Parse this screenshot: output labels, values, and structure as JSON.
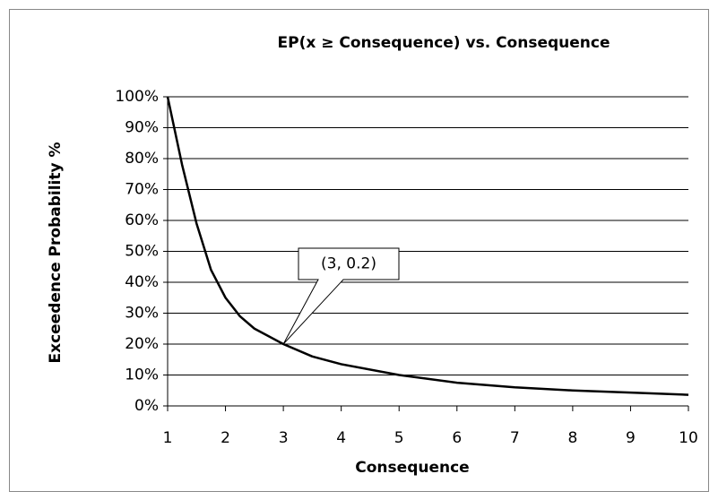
{
  "chart_data": {
    "type": "line",
    "title": "EP(x ≥ Consequence) vs. Consequence",
    "x_label": "Consequence",
    "y_label": "Exceedence Probability %",
    "x": [
      1,
      1.25,
      1.5,
      1.75,
      2,
      2.25,
      2.5,
      3,
      3.5,
      4,
      5,
      6,
      7,
      8,
      9,
      10
    ],
    "series": [
      {
        "color": "#000000",
        "values": [
          100,
          78,
          59,
          44,
          35,
          29,
          25,
          20,
          16,
          13.5,
          10,
          7.5,
          6,
          5,
          4.3,
          3.6
        ]
      }
    ],
    "xlim": [
      1,
      10
    ],
    "xticks": [
      1,
      2,
      3,
      4,
      5,
      6,
      7,
      8,
      9,
      10
    ],
    "ylim": [
      0,
      100
    ],
    "yticks": [
      {
        "value": 0,
        "label": "0%"
      },
      {
        "value": 10,
        "label": "10%"
      },
      {
        "value": 20,
        "label": "20%"
      },
      {
        "value": 30,
        "label": "30%"
      },
      {
        "value": 40,
        "label": "40%"
      },
      {
        "value": 50,
        "label": "50%"
      },
      {
        "value": 60,
        "label": "60%"
      },
      {
        "value": 70,
        "label": "70%"
      },
      {
        "value": 80,
        "label": "80%"
      },
      {
        "value": 90,
        "label": "90%"
      },
      {
        "value": 100,
        "label": "100%"
      }
    ],
    "grid": true,
    "annotations": [
      {
        "text": "(3, 0.2)",
        "x": 3,
        "y": 20
      }
    ]
  }
}
